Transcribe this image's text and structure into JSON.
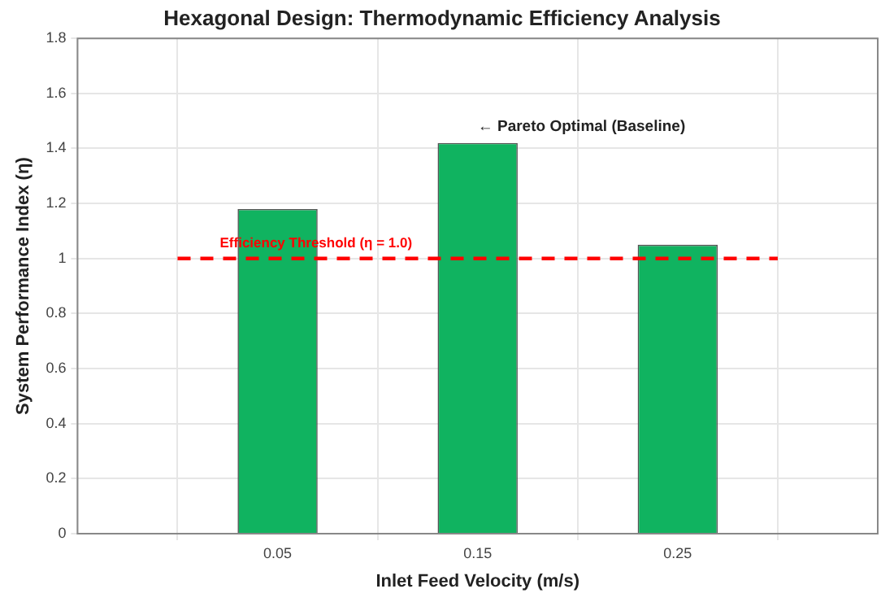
{
  "chart_data": {
    "type": "bar",
    "title": "Hexagonal Design: Thermodynamic Efficiency Analysis",
    "xlabel": "Inlet Feed Velocity (m/s)",
    "ylabel": "System Performance Index (η)",
    "x": [
      0.05,
      0.15,
      0.25
    ],
    "values": [
      1.18,
      1.42,
      1.05
    ],
    "color": "#10b360",
    "xlim": [
      -0.05,
      0.35
    ],
    "xticks": [
      0.05,
      0.15,
      0.25
    ],
    "ylim": [
      0,
      1.8
    ],
    "yticks": [
      0,
      0.2,
      0.4,
      0.6,
      0.8,
      1,
      1.2,
      1.4,
      1.6,
      1.8
    ],
    "grid": true,
    "legend": false,
    "ref_lines": [
      {
        "axis": "y",
        "value": 1.0,
        "label": "Efficiency Threshold (η = 1.0)",
        "color": "#ff0000",
        "line_style": "dashed"
      }
    ],
    "annotations": [
      {
        "text": "← Pareto Optimal (Baseline)",
        "x": 0.15,
        "y": 1.42
      }
    ]
  }
}
